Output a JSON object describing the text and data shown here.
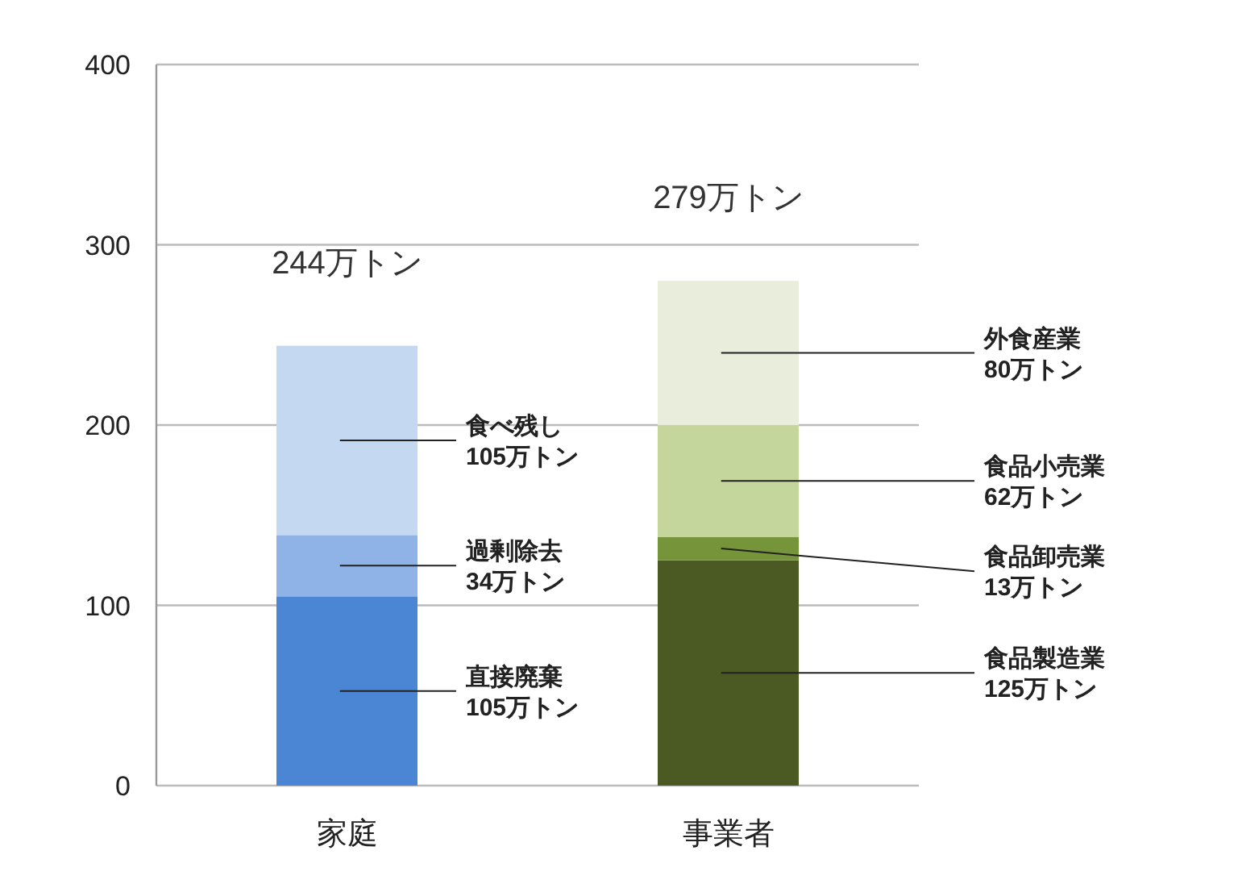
{
  "chart_data": {
    "type": "bar",
    "stacked": true,
    "grid": "y",
    "categories": [
      "家庭",
      "事業者"
    ],
    "ylim": [
      0,
      400
    ],
    "yticks": [
      0,
      100,
      200,
      300,
      400
    ],
    "series": [
      {
        "name": "直接廃棄",
        "color": "#4a86d4",
        "values": [
          105,
          null
        ],
        "value_labels": [
          "105万トン",
          null
        ]
      },
      {
        "name": "過剰除去",
        "color": "#8fb3e6",
        "values": [
          34,
          null
        ],
        "value_labels": [
          "34万トン",
          null
        ]
      },
      {
        "name": "食べ残し",
        "color": "#c5d8f2",
        "values": [
          105,
          null
        ],
        "value_labels": [
          "105万トン",
          null
        ]
      },
      {
        "name": "食品製造業",
        "color": "#4b5a22",
        "values": [
          null,
          125
        ],
        "value_labels": [
          null,
          "125万トン"
        ]
      },
      {
        "name": "食品卸売業",
        "color": "#76943a",
        "values": [
          null,
          13
        ],
        "value_labels": [
          null,
          "13万トン"
        ]
      },
      {
        "name": "食品小売業",
        "color": "#c5d69c",
        "values": [
          null,
          62
        ],
        "value_labels": [
          null,
          "62万トン"
        ]
      },
      {
        "name": "外食産業",
        "color": "#e8eedb",
        "values": [
          null,
          80
        ],
        "value_labels": [
          null,
          "80万トン"
        ]
      }
    ],
    "totals": [
      "244万トン",
      "279万トン"
    ]
  }
}
